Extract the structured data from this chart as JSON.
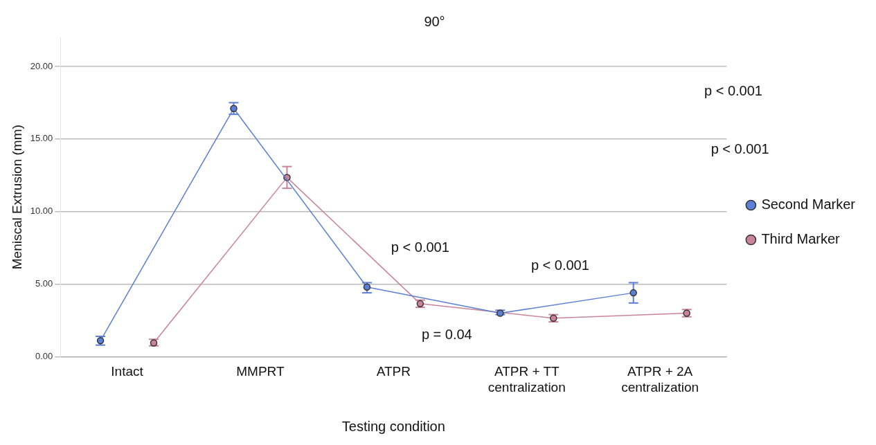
{
  "chart_data": {
    "type": "line",
    "title": "90°",
    "xlabel": "Testing condition",
    "ylabel": "Meniscal Extrusion (mm)",
    "categories": [
      "Intact",
      "MMPRT",
      "ATPR",
      "ATPR + TT centralization",
      "ATPR + 2A centralization"
    ],
    "series": [
      {
        "name": "Second Marker",
        "color": "#5b7fd6",
        "values": [
          1.1,
          17.1,
          4.8,
          3.0,
          4.4
        ],
        "errors": [
          [
            0.8,
            1.4
          ],
          [
            16.7,
            17.5
          ],
          [
            4.4,
            5.1
          ],
          [
            2.9,
            3.2
          ],
          [
            3.7,
            5.1
          ]
        ]
      },
      {
        "name": "Third Marker",
        "color": "#c9849a",
        "values": [
          0.95,
          12.35,
          3.65,
          2.65,
          3.0
        ],
        "errors": [
          [
            0.75,
            1.2
          ],
          [
            11.6,
            13.1
          ],
          [
            3.4,
            3.9
          ],
          [
            2.4,
            2.9
          ],
          [
            2.75,
            3.25
          ]
        ]
      }
    ],
    "ylim": [
      0,
      22
    ],
    "yticks": [
      {
        "value": 0,
        "label": "0.00"
      },
      {
        "value": 5,
        "label": "5.00"
      },
      {
        "value": 10,
        "label": "10.00"
      },
      {
        "value": 15,
        "label": "15.00"
      },
      {
        "value": 20,
        "label": "20.00"
      }
    ],
    "grid": "y",
    "legend": "right",
    "marker": "circle",
    "line_style": "solid",
    "annotations": [
      "p < 0.001",
      "p < 0.001",
      "p < 0.001",
      "p < 0.001",
      "p = 0.04"
    ]
  }
}
